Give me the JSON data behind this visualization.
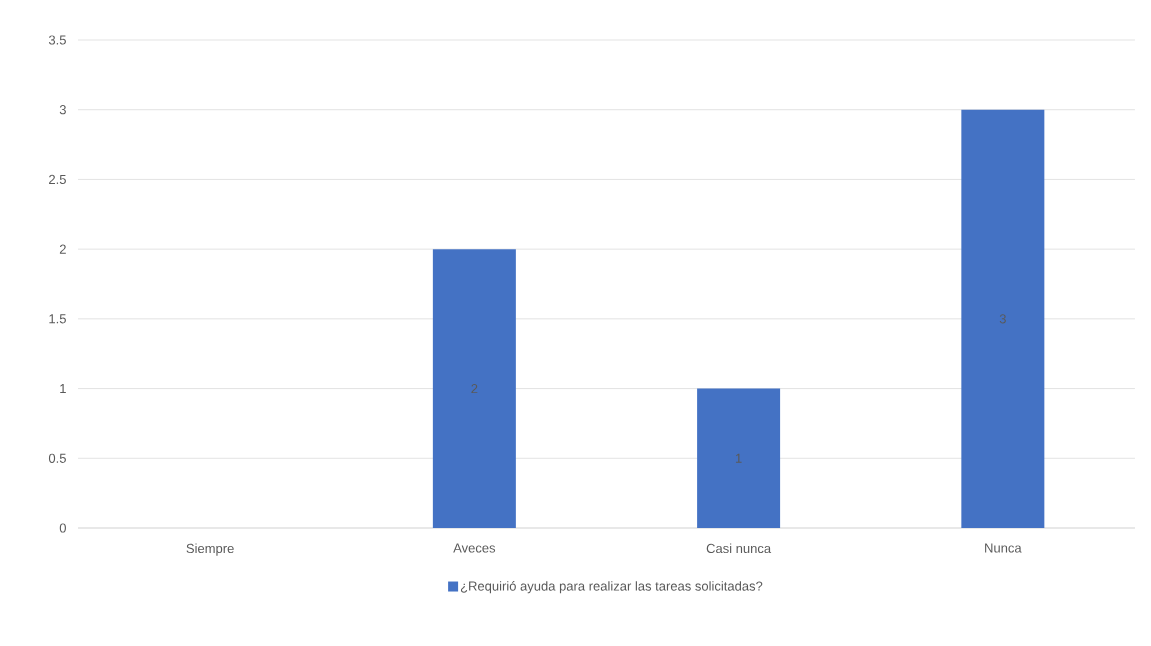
{
  "chart_data": {
    "type": "bar",
    "categories": [
      "Siempre",
      "Aveces",
      "Casi nunca",
      "Nunca"
    ],
    "series": [
      {
        "name": "¿Requirió ayuda para realizar las tareas solicitadas?",
        "color": "#4472c4",
        "values": [
          0,
          2,
          1,
          3
        ],
        "value_labels": [
          null,
          "2",
          "1",
          "3"
        ]
      }
    ],
    "ylim": [
      0,
      3.5
    ],
    "yticks": [
      0,
      0.5,
      1,
      1.5,
      2,
      2.5,
      3,
      3.5
    ],
    "grid": "y",
    "legend": "bottom"
  }
}
